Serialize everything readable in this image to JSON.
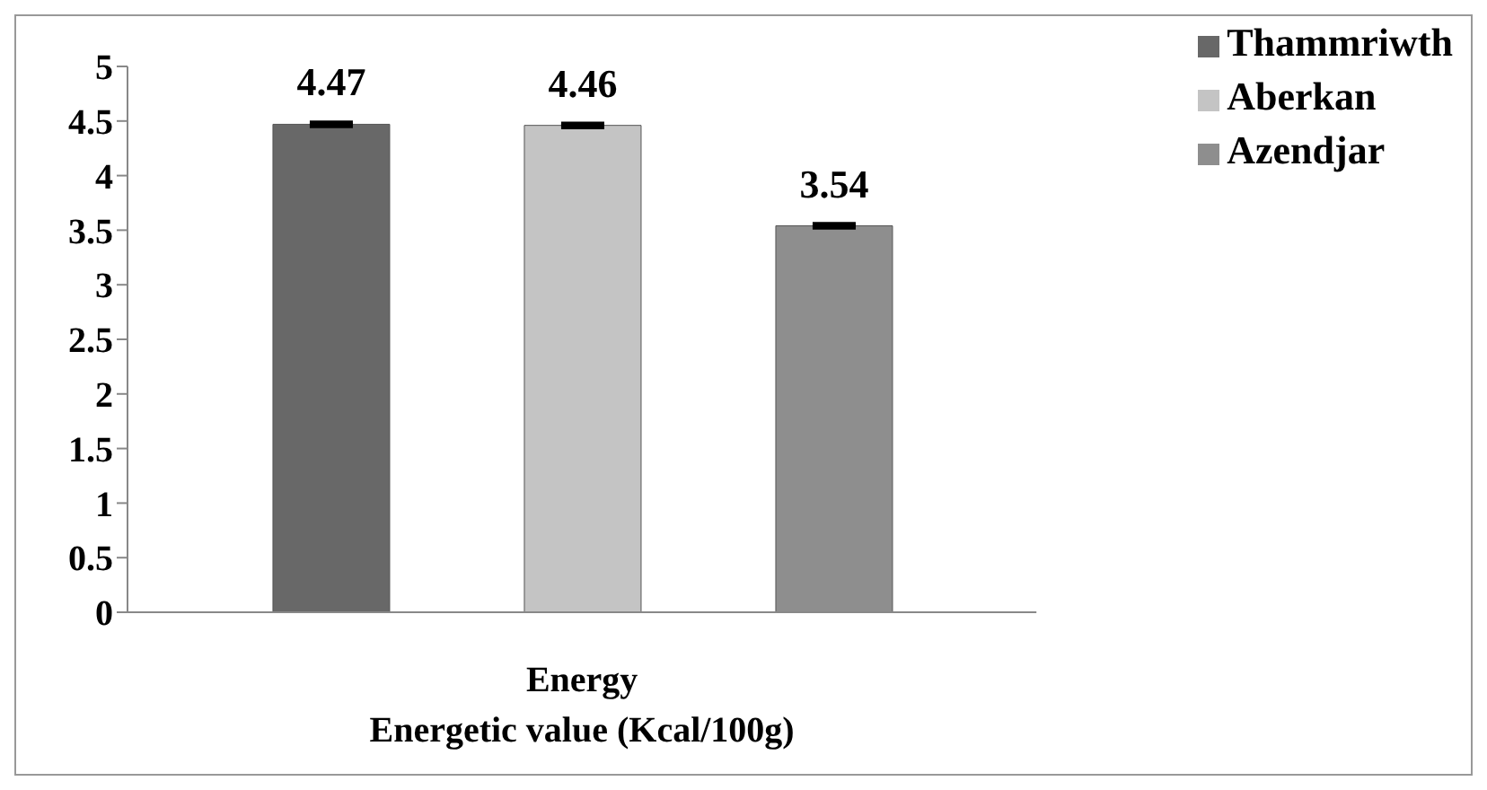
{
  "chart_data": {
    "type": "bar",
    "categories": [
      "Energy"
    ],
    "xlabel": "Energetic value (Kcal/100g)",
    "series": [
      {
        "name": "Thammriwth",
        "color": "#686868",
        "values": [
          4.47
        ],
        "errors": [
          0.01
        ]
      },
      {
        "name": "Aberkan",
        "color": "#c4c4c4",
        "values": [
          4.46
        ],
        "errors": [
          0.01
        ]
      },
      {
        "name": "Azendjar",
        "color": "#8e8e8e",
        "values": [
          3.54
        ],
        "errors": [
          0.01
        ]
      }
    ],
    "ylim": [
      0,
      5
    ],
    "yticks": [
      0,
      0.5,
      1,
      1.5,
      2,
      2.5,
      3,
      3.5,
      4,
      4.5,
      5
    ],
    "grid": false,
    "legend": "top right",
    "data_labels": true
  }
}
